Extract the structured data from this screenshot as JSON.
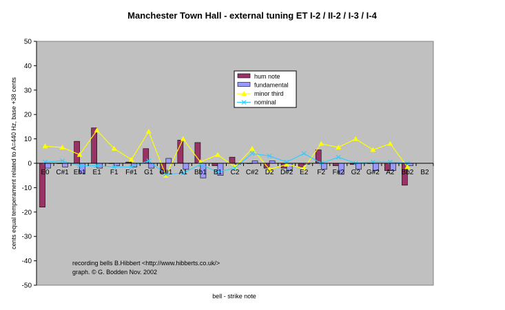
{
  "chart_data": {
    "type": "bar",
    "title": "Manchester Town Hall - external tuning ET I-2 / II-2 / I-3 / I-4",
    "xlabel": "bell - strike note",
    "ylabel": "cents equal temperament related to A=440 Hz, base +38 cents",
    "ylim": [
      -50,
      50
    ],
    "yticks": [
      -50,
      -40,
      -30,
      -20,
      -10,
      0,
      10,
      20,
      30,
      40,
      50
    ],
    "categories": [
      "E0",
      "C#1",
      "Eb1",
      "E1",
      "F1",
      "F#1",
      "G1",
      "G#1",
      "A1",
      "Bb1",
      "B1",
      "C2",
      "C#2",
      "D2",
      "D#2",
      "E2",
      "F2",
      "F#2",
      "G2",
      "G#2",
      "A2",
      "Bb2",
      "B2"
    ],
    "series": [
      {
        "name": "hum note",
        "kind": "bar",
        "color": "#993366",
        "values": [
          -18,
          0,
          9,
          14.5,
          0,
          0.5,
          6,
          -4,
          9.5,
          8.5,
          -1,
          2.5,
          0,
          -2,
          -2,
          -1.5,
          5.5,
          -1,
          -0.5,
          0,
          -3,
          -9,
          null
        ]
      },
      {
        "name": "fundamental",
        "kind": "bar",
        "color": "#9999ff",
        "values": [
          -2,
          -1.5,
          -4,
          -2,
          -1,
          -1.5,
          -2,
          2,
          -2.5,
          -6,
          -5,
          -0.5,
          1,
          1,
          -3,
          -0.5,
          -2.5,
          -4.5,
          -2.5,
          -3,
          -3,
          -1,
          null
        ]
      },
      {
        "name": "minor third",
        "kind": "line",
        "color": "#ffff00",
        "values": [
          7,
          6.5,
          3.5,
          13.5,
          6,
          1.5,
          13,
          -5,
          10,
          0.5,
          3.5,
          -1.5,
          6,
          -2.5,
          -0.5,
          -2,
          8,
          6.5,
          10,
          5.5,
          8,
          -1.5,
          null
        ]
      },
      {
        "name": "nominal",
        "kind": "line",
        "color": "#33ccff",
        "values": [
          0.5,
          1,
          -1,
          -1,
          -1.5,
          -1.5,
          1,
          -4.5,
          -4,
          -0.5,
          -3.5,
          -2,
          4,
          3,
          0.5,
          4,
          0,
          2.5,
          0,
          0.5,
          0.5,
          0,
          null
        ]
      }
    ],
    "legend": "inside, upper-middle",
    "grid": false,
    "plot_background": "#c0c0c0",
    "annotations": [
      "recording bells B.Hibbert <http://www.hibberts.co.uk/>",
      "graph. © G. Bodden Nov. 2002"
    ]
  }
}
